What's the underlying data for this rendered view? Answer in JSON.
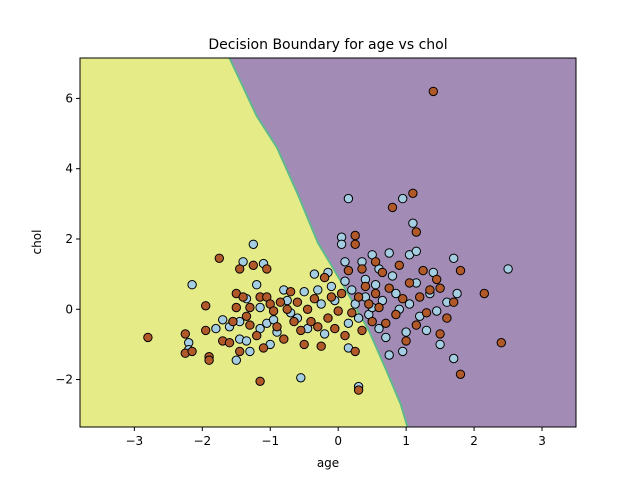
{
  "chart_data": {
    "type": "scatter",
    "title": "Decision Boundary for age vs chol",
    "xlabel": "age",
    "ylabel": "chol",
    "xlim": [
      -3.8,
      3.5
    ],
    "ylim": [
      -3.35,
      7.15
    ],
    "xticks": [
      -3,
      -2,
      -1,
      0,
      1,
      2,
      3
    ],
    "xtick_labels": [
      "−3",
      "−2",
      "−1",
      "0",
      "1",
      "2",
      "3"
    ],
    "yticks": [
      -2,
      0,
      2,
      4,
      6
    ],
    "ytick_labels": [
      "−2",
      "0",
      "2",
      "4",
      "6"
    ],
    "grid": false,
    "legend": "none",
    "regions": {
      "left_color": "#e5ec87",
      "right_color": "#a28bb5",
      "boundary_color": "#5fb88e",
      "boundary": [
        [
          -1.6,
          7.15
        ],
        [
          -1.2,
          5.5
        ],
        [
          -0.9,
          4.6
        ],
        [
          -0.6,
          3.3
        ],
        [
          -0.3,
          1.9
        ],
        [
          0.1,
          0.6
        ],
        [
          0.45,
          -0.6
        ],
        [
          0.7,
          -1.7
        ],
        [
          0.92,
          -2.7
        ],
        [
          1.02,
          -3.35
        ]
      ]
    },
    "series": [
      {
        "color": "#a6cee3",
        "edge": "#000000",
        "points": [
          [
            -2.15,
            0.7
          ],
          [
            -2.2,
            -0.95
          ],
          [
            -2.2,
            -1.15
          ],
          [
            -1.8,
            -0.55
          ],
          [
            -1.7,
            -0.3
          ],
          [
            -1.6,
            -0.5
          ],
          [
            -1.5,
            -1.45
          ],
          [
            -1.45,
            -0.35
          ],
          [
            -1.45,
            -0.85
          ],
          [
            -1.4,
            1.35
          ],
          [
            -1.35,
            0.3
          ],
          [
            -1.35,
            -0.9
          ],
          [
            -1.3,
            -1.2
          ],
          [
            -1.25,
            1.85
          ],
          [
            -1.2,
            0.7
          ],
          [
            -1.15,
            0.05
          ],
          [
            -1.15,
            -0.55
          ],
          [
            -1.1,
            1.3
          ],
          [
            -1.05,
            -0.4
          ],
          [
            -1.0,
            -1.0
          ],
          [
            -0.95,
            -0.3
          ],
          [
            -0.9,
            -0.65
          ],
          [
            -0.8,
            0.55
          ],
          [
            -0.75,
            0.25
          ],
          [
            -0.7,
            -0.1
          ],
          [
            -0.6,
            -0.25
          ],
          [
            -0.55,
            -1.95
          ],
          [
            -0.5,
            0.5
          ],
          [
            -0.45,
            -0.55
          ],
          [
            -0.35,
            1.0
          ],
          [
            -0.3,
            0.55
          ],
          [
            -0.25,
            0.15
          ],
          [
            -0.2,
            -0.7
          ],
          [
            -0.15,
            1.05
          ],
          [
            -0.1,
            0.65
          ],
          [
            -0.05,
            0.25
          ],
          [
            0.05,
            2.05
          ],
          [
            0.05,
            1.85
          ],
          [
            0.1,
            1.35
          ],
          [
            0.1,
            0.8
          ],
          [
            0.15,
            -0.4
          ],
          [
            0.15,
            -1.1
          ],
          [
            0.15,
            3.15
          ],
          [
            0.2,
            0.55
          ],
          [
            0.25,
            0.15
          ],
          [
            0.3,
            -2.2
          ],
          [
            0.3,
            -0.25
          ],
          [
            0.35,
            1.35
          ],
          [
            0.4,
            0.85
          ],
          [
            0.4,
            0.35
          ],
          [
            0.45,
            -0.15
          ],
          [
            0.5,
            1.55
          ],
          [
            0.5,
            0.05
          ],
          [
            0.55,
            0.7
          ],
          [
            0.6,
            1.15
          ],
          [
            0.6,
            -0.55
          ],
          [
            0.65,
            0.25
          ],
          [
            0.7,
            -0.8
          ],
          [
            0.75,
            1.6
          ],
          [
            0.75,
            -1.3
          ],
          [
            0.8,
            0.95
          ],
          [
            0.85,
            0.45
          ],
          [
            0.9,
            0.0
          ],
          [
            0.95,
            3.15
          ],
          [
            0.95,
            -1.2
          ],
          [
            1.0,
            -0.65
          ],
          [
            1.05,
            1.55
          ],
          [
            1.05,
            0.15
          ],
          [
            1.1,
            2.45
          ],
          [
            1.15,
            1.65
          ],
          [
            1.15,
            0.75
          ],
          [
            1.2,
            -0.2
          ],
          [
            1.3,
            -0.6
          ],
          [
            1.35,
            0.45
          ],
          [
            1.4,
            1.05
          ],
          [
            1.45,
            -0.05
          ],
          [
            1.5,
            -1.0
          ],
          [
            1.6,
            0.2
          ],
          [
            1.7,
            1.45
          ],
          [
            1.7,
            -1.4
          ],
          [
            1.75,
            0.45
          ],
          [
            2.5,
            1.15
          ]
        ]
      },
      {
        "color": "#b15928",
        "edge": "#000000",
        "points": [
          [
            -2.8,
            -0.8
          ],
          [
            -2.25,
            -0.7
          ],
          [
            -2.25,
            -1.25
          ],
          [
            -2.15,
            -1.2
          ],
          [
            -1.95,
            0.1
          ],
          [
            -1.95,
            -0.6
          ],
          [
            -1.9,
            -1.35
          ],
          [
            -1.9,
            -1.45
          ],
          [
            -1.75,
            1.45
          ],
          [
            -1.7,
            -0.9
          ],
          [
            -1.6,
            -0.95
          ],
          [
            -1.55,
            -0.35
          ],
          [
            -1.5,
            0.45
          ],
          [
            -1.5,
            0.05
          ],
          [
            -1.45,
            1.15
          ],
          [
            -1.45,
            -1.2
          ],
          [
            -1.4,
            0.35
          ],
          [
            -1.35,
            -0.2
          ],
          [
            -1.3,
            0.05
          ],
          [
            -1.3,
            -0.45
          ],
          [
            -1.25,
            1.25
          ],
          [
            -1.2,
            -0.75
          ],
          [
            -1.15,
            -2.05
          ],
          [
            -1.15,
            0.35
          ],
          [
            -1.1,
            -1.1
          ],
          [
            -1.05,
            0.35
          ],
          [
            -1.05,
            1.15
          ],
          [
            -1.0,
            0.15
          ],
          [
            -0.95,
            -0.05
          ],
          [
            -0.9,
            -0.5
          ],
          [
            -0.85,
            0.2
          ],
          [
            -0.8,
            -0.85
          ],
          [
            -0.75,
            0.0
          ],
          [
            -0.7,
            0.5
          ],
          [
            -0.65,
            -0.35
          ],
          [
            -0.6,
            0.2
          ],
          [
            -0.55,
            -0.6
          ],
          [
            -0.5,
            -1.0
          ],
          [
            -0.45,
            0.0
          ],
          [
            -0.4,
            -0.35
          ],
          [
            -0.35,
            0.3
          ],
          [
            -0.3,
            -0.5
          ],
          [
            -0.25,
            -1.05
          ],
          [
            -0.2,
            0.9
          ],
          [
            -0.15,
            -0.25
          ],
          [
            -0.1,
            0.35
          ],
          [
            -0.05,
            -0.55
          ],
          [
            0.0,
            -0.05
          ],
          [
            0.05,
            0.45
          ],
          [
            0.1,
            -0.75
          ],
          [
            0.15,
            1.1
          ],
          [
            0.2,
            -0.1
          ],
          [
            0.25,
            2.1
          ],
          [
            0.25,
            1.85
          ],
          [
            0.25,
            -1.2
          ],
          [
            0.3,
            0.35
          ],
          [
            0.3,
            -2.3
          ],
          [
            0.35,
            1.15
          ],
          [
            0.35,
            -0.6
          ],
          [
            0.4,
            0.65
          ],
          [
            0.45,
            0.15
          ],
          [
            0.5,
            -0.35
          ],
          [
            0.55,
            1.35
          ],
          [
            0.55,
            0.45
          ],
          [
            0.6,
            0.05
          ],
          [
            0.65,
            1.05
          ],
          [
            0.7,
            -0.4
          ],
          [
            0.75,
            0.6
          ],
          [
            0.8,
            2.9
          ],
          [
            0.85,
            -0.15
          ],
          [
            0.9,
            1.25
          ],
          [
            0.95,
            0.3
          ],
          [
            1.0,
            -0.9
          ],
          [
            1.05,
            0.75
          ],
          [
            1.1,
            3.3
          ],
          [
            1.15,
            2.2
          ],
          [
            1.15,
            -0.45
          ],
          [
            1.2,
            0.35
          ],
          [
            1.25,
            1.1
          ],
          [
            1.3,
            -0.1
          ],
          [
            1.35,
            0.55
          ],
          [
            1.4,
            6.2
          ],
          [
            1.45,
            0.85
          ],
          [
            1.5,
            -0.7
          ],
          [
            1.5,
            0.6
          ],
          [
            1.6,
            -0.25
          ],
          [
            1.7,
            0.2
          ],
          [
            1.8,
            1.1
          ],
          [
            1.8,
            -1.85
          ],
          [
            2.15,
            0.45
          ],
          [
            2.4,
            -0.95
          ]
        ]
      }
    ]
  }
}
